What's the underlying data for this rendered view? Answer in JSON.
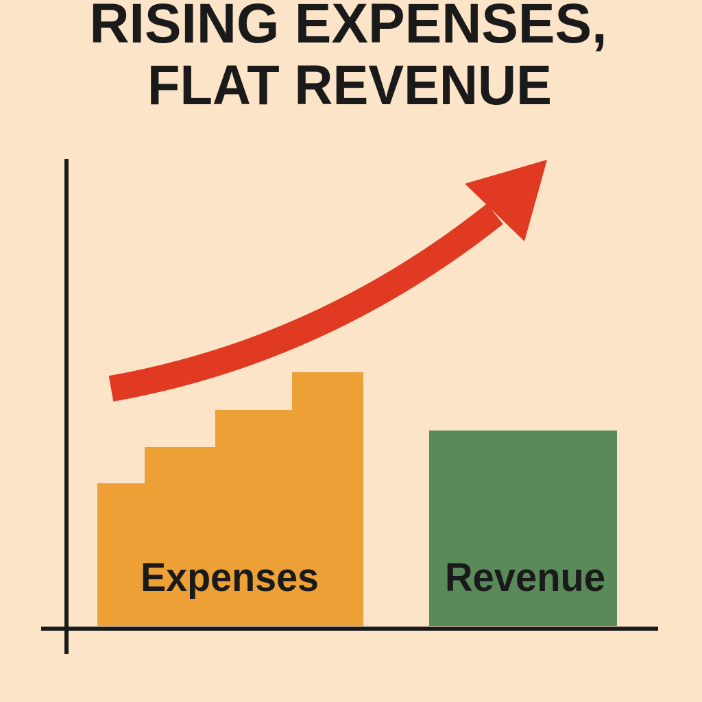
{
  "title": [
    "RISING EXPENSES,",
    "FLAT REVENUE"
  ],
  "labels": {
    "expenses": "Expenses",
    "revenue": "Revenue"
  }
}
